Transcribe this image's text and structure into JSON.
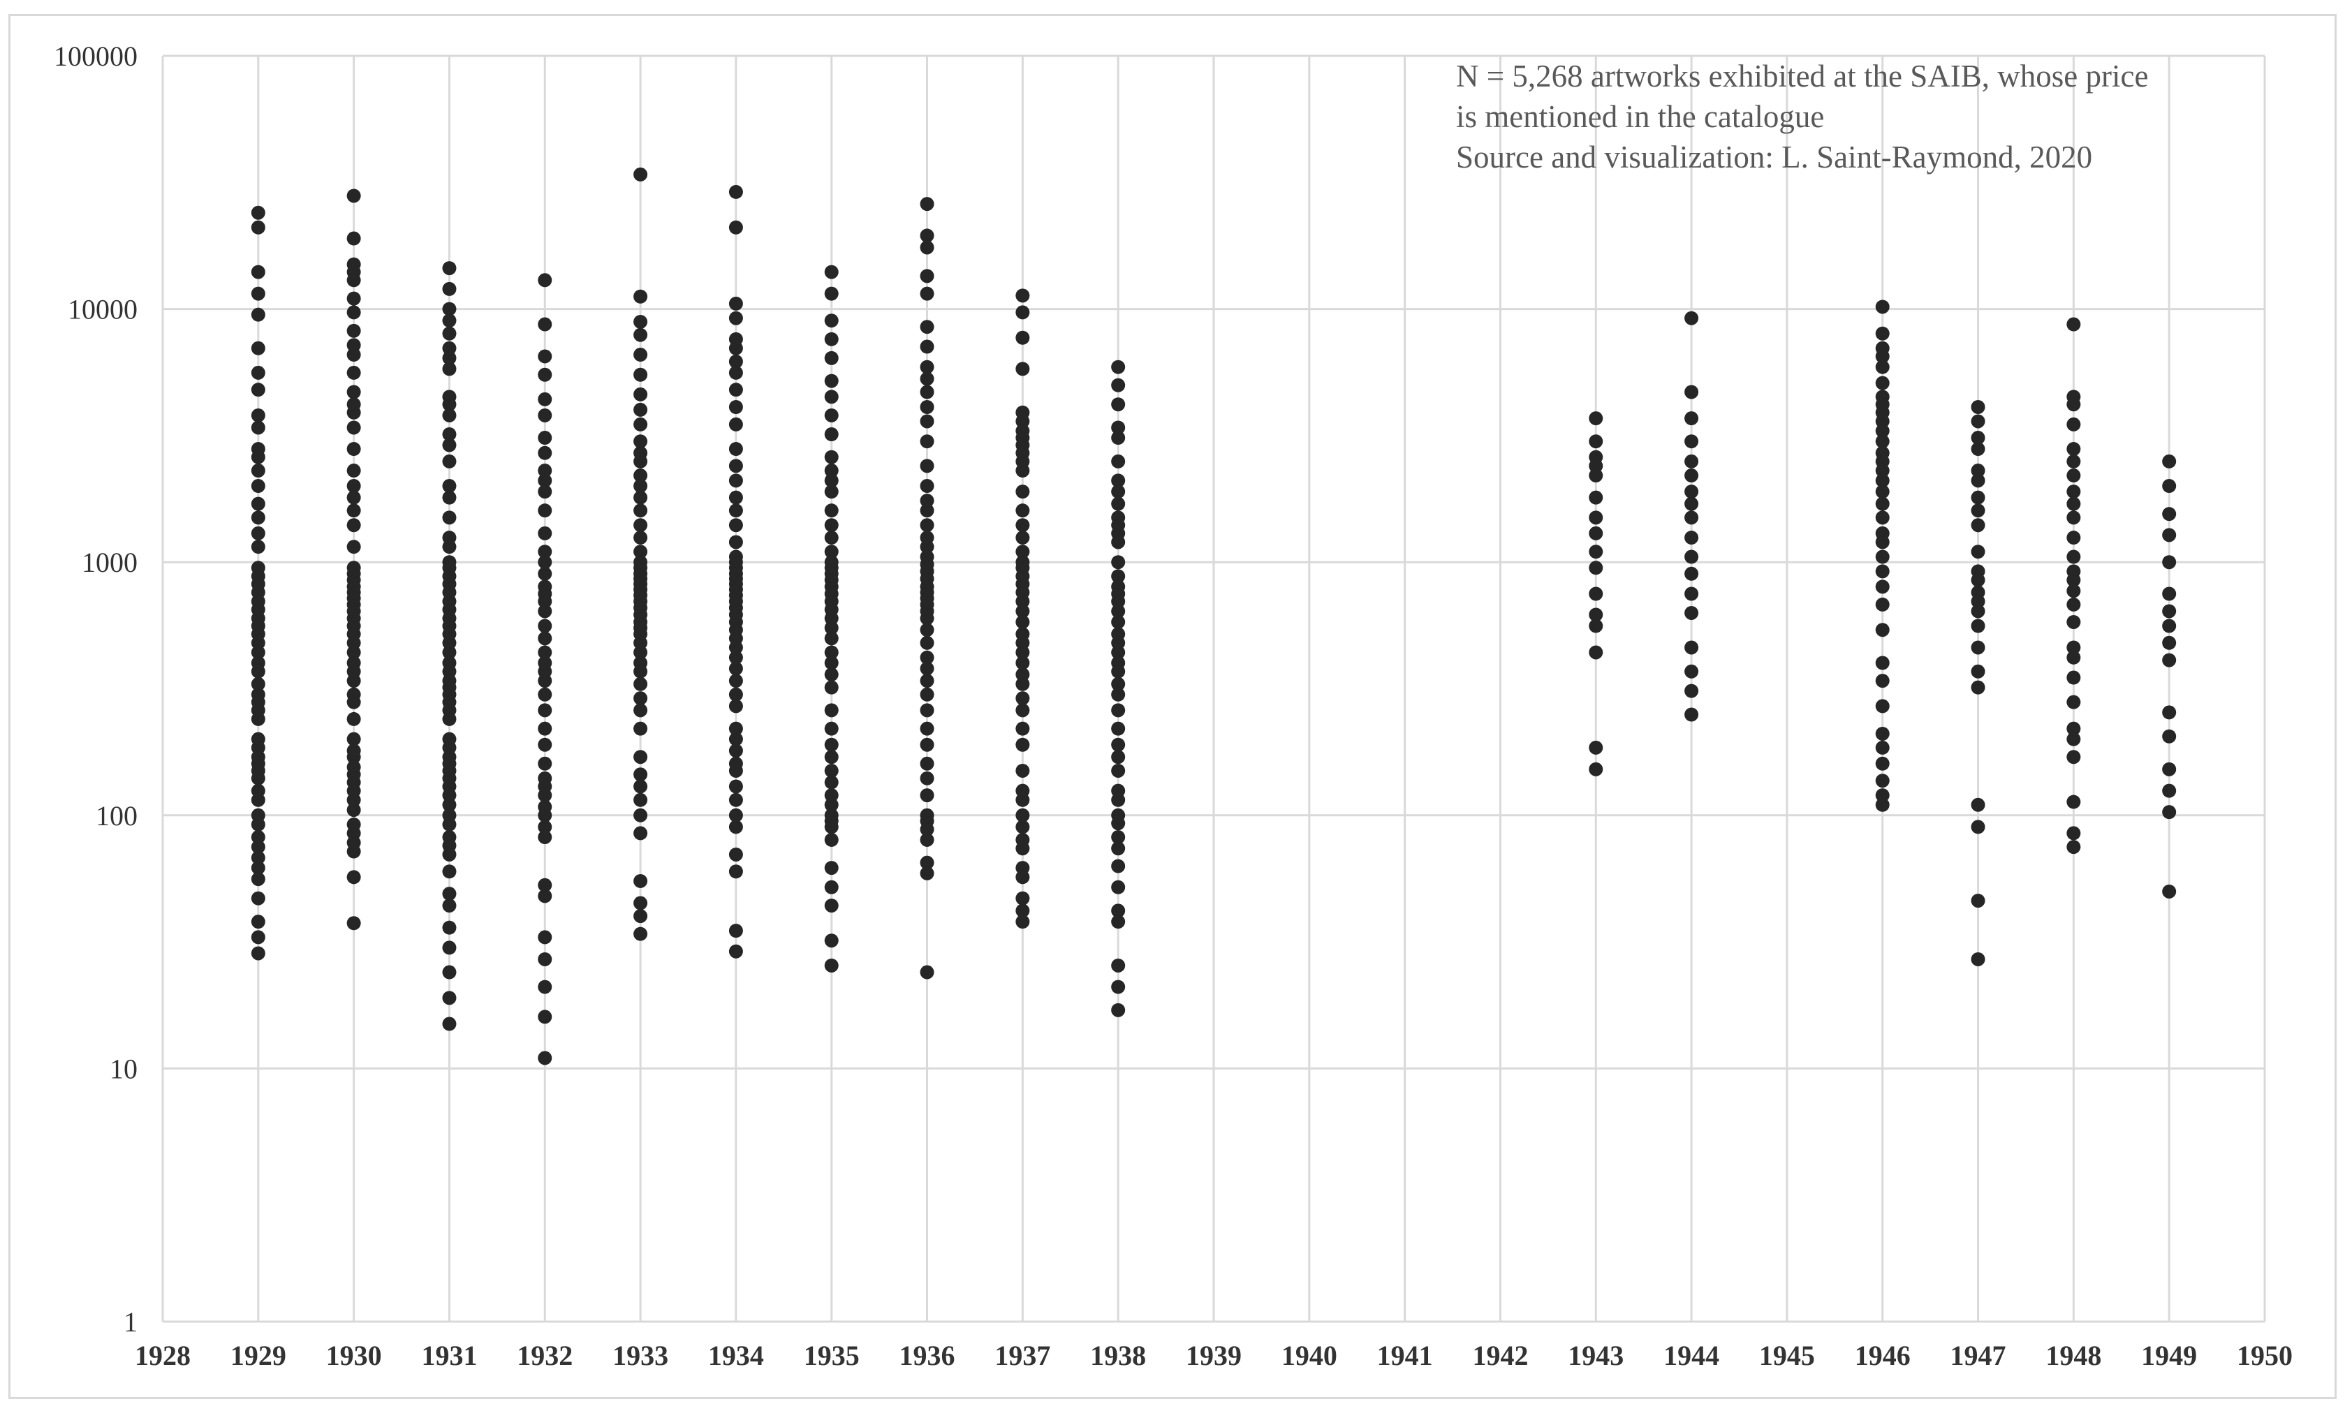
{
  "chart_data": {
    "type": "scatter",
    "title": "",
    "xlabel": "",
    "ylabel": "",
    "xlim": [
      1928,
      1950
    ],
    "ylim": [
      1,
      100000
    ],
    "y_scale": "log",
    "x_ticks": [
      "1928",
      "1929",
      "1930",
      "1931",
      "1932",
      "1933",
      "1934",
      "1935",
      "1936",
      "1937",
      "1938",
      "1939",
      "1940",
      "1941",
      "1942",
      "1943",
      "1944",
      "1945",
      "1946",
      "1947",
      "1948",
      "1949",
      "1950"
    ],
    "y_ticks": [
      "1",
      "10",
      "100",
      "1000",
      "10000",
      "100000"
    ],
    "grid": true,
    "legend": "none",
    "marker_color": "#262626",
    "annotation": [
      "N = 5,268 artworks exhibited at the SAIB, whose price",
      "is mentioned in the catalogue",
      "Source and visualization: L. Saint-Raymond, 2020"
    ],
    "series": [
      {
        "points_by_year": [
          {
            "x": 1929,
            "y": [
              24000,
              21000,
              14000,
              11500,
              9500,
              7000,
              5600,
              4800,
              3800,
              3400,
              2800,
              2600,
              2300,
              2000,
              1700,
              1500,
              1300,
              1150,
              950,
              880,
              820,
              760,
              700,
              650,
              600,
              560,
              520,
              480,
              440,
              400,
              370,
              330,
              300,
              280,
              260,
              240,
              200,
              185,
              170,
              160,
              150,
              140,
              125,
              115,
              100,
              92,
              82,
              75,
              68,
              62,
              56,
              47,
              38,
              33,
              28.5
            ]
          },
          {
            "x": 1930,
            "y": [
              28000,
              19000,
              15000,
              14000,
              13000,
              11000,
              9700,
              8200,
              7200,
              6600,
              5600,
              4700,
              4200,
              3900,
              3400,
              2800,
              2300,
              2000,
              1800,
              1600,
              1400,
              1150,
              950,
              900,
              850,
              800,
              760,
              720,
              680,
              640,
              600,
              560,
              520,
              480,
              440,
              400,
              370,
              340,
              300,
              280,
              240,
              200,
              180,
              170,
              155,
              145,
              135,
              125,
              115,
              105,
              92,
              85,
              78,
              72,
              57,
              37.5
            ]
          },
          {
            "x": 1931,
            "y": [
              14500,
              12000,
              10000,
              9000,
              8000,
              7000,
              6400,
              5800,
              4500,
              4200,
              3800,
              3200,
              2900,
              2500,
              2000,
              1800,
              1500,
              1250,
              1150,
              1000,
              950,
              880,
              820,
              760,
              700,
              650,
              600,
              560,
              520,
              480,
              440,
              400,
              370,
              340,
              320,
              300,
              280,
              260,
              240,
              200,
              185,
              170,
              160,
              150,
              140,
              130,
              120,
              110,
              100,
              92,
              82,
              76,
              70,
              60,
              49,
              44,
              36,
              30,
              24,
              19,
              15
            ]
          },
          {
            "x": 1932,
            "y": [
              13000,
              8700,
              6500,
              5500,
              4400,
              3800,
              3100,
              2700,
              2300,
              2100,
              1900,
              1600,
              1300,
              1100,
              1000,
              900,
              800,
              750,
              700,
              640,
              560,
              500,
              440,
              400,
              370,
              340,
              300,
              260,
              220,
              190,
              160,
              140,
              130,
              120,
              108,
              100,
              90,
              82,
              53,
              48,
              33,
              27,
              21,
              16,
              11
            ]
          },
          {
            "x": 1933,
            "y": [
              34000,
              11200,
              8900,
              7900,
              6600,
              5500,
              4600,
              4000,
              3500,
              3000,
              2700,
              2500,
              2200,
              2000,
              1800,
              1600,
              1400,
              1250,
              1100,
              1000,
              950,
              900,
              860,
              820,
              780,
              740,
              700,
              660,
              620,
              580,
              550,
              520,
              480,
              440,
              400,
              370,
              330,
              290,
              260,
              220,
              170,
              145,
              130,
              115,
              100,
              85,
              55,
              45,
              40,
              34
            ]
          },
          {
            "x": 1934,
            "y": [
              29000,
              21000,
              10500,
              9200,
              7600,
              7000,
              6200,
              5600,
              4800,
              4100,
              3500,
              2800,
              2400,
              2100,
              1800,
              1600,
              1400,
              1200,
              1050,
              1000,
              950,
              900,
              860,
              820,
              780,
              740,
              700,
              660,
              620,
              580,
              540,
              500,
              460,
              420,
              380,
              340,
              300,
              270,
              220,
              200,
              180,
              160,
              150,
              130,
              115,
              100,
              90,
              70,
              60,
              35,
              29
            ]
          },
          {
            "x": 1935,
            "y": [
              14000,
              11500,
              9000,
              7600,
              6400,
              5200,
              4500,
              3800,
              3200,
              2600,
              2300,
              2100,
              1900,
              1600,
              1400,
              1250,
              1100,
              1000,
              950,
              900,
              850,
              800,
              750,
              700,
              650,
              600,
              550,
              500,
              440,
              400,
              360,
              320,
              260,
              220,
              190,
              170,
              150,
              135,
              120,
              110,
              100,
              95,
              90,
              80,
              62,
              52,
              44,
              32,
              25.5
            ]
          },
          {
            "x": 1936,
            "y": [
              26000,
              19500,
              17500,
              13500,
              11500,
              8500,
              7100,
              5900,
              5300,
              4700,
              4100,
              3600,
              3000,
              2400,
              2000,
              1750,
              1600,
              1400,
              1250,
              1150,
              1050,
              980,
              920,
              860,
              800,
              760,
              720,
              680,
              640,
              600,
              540,
              480,
              420,
              380,
              340,
              300,
              260,
              220,
              190,
              160,
              140,
              120,
              100,
              95,
              88,
              80,
              65,
              59,
              24
            ]
          },
          {
            "x": 1937,
            "y": [
              11300,
              9700,
              7700,
              5800,
              3900,
              3600,
              3300,
              3100,
              2900,
              2700,
              2500,
              2300,
              1900,
              1600,
              1400,
              1250,
              1100,
              1000,
              950,
              880,
              820,
              760,
              700,
              640,
              580,
              520,
              480,
              440,
              400,
              360,
              330,
              290,
              260,
              220,
              190,
              150,
              125,
              115,
              100,
              90,
              80,
              74,
              62,
              57,
              47,
              42,
              38
            ]
          },
          {
            "x": 1938,
            "y": [
              5900,
              5000,
              4200,
              3400,
              3100,
              2500,
              2100,
              1900,
              1700,
              1500,
              1400,
              1300,
              1200,
              1000,
              880,
              800,
              750,
              700,
              640,
              580,
              520,
              480,
              440,
              400,
              370,
              330,
              300,
              260,
              220,
              190,
              170,
              150,
              125,
              115,
              100,
              93,
              82,
              74,
              63,
              52,
              42,
              38,
              25.5,
              21,
              17
            ]
          },
          {
            "x": 1943,
            "y": [
              3700,
              3000,
              2600,
              2400,
              2200,
              1800,
              1500,
              1300,
              1100,
              950,
              750,
              620,
              560,
              440,
              185,
              152
            ]
          },
          {
            "x": 1944,
            "y": [
              9200,
              4700,
              3700,
              3000,
              2500,
              2200,
              1900,
              1700,
              1500,
              1250,
              1050,
              900,
              750,
              630,
              460,
              370,
              310,
              250
            ]
          },
          {
            "x": 1946,
            "y": [
              10200,
              8000,
              7000,
              6500,
              5900,
              5100,
              4500,
              4200,
              3900,
              3600,
              3300,
              3000,
              2700,
              2500,
              2300,
              2100,
              1900,
              1700,
              1500,
              1300,
              1200,
              1050,
              920,
              800,
              680,
              540,
              400,
              340,
              270,
              210,
              185,
              160,
              137,
              120,
              110
            ]
          },
          {
            "x": 1947,
            "y": [
              4100,
              3600,
              3100,
              2800,
              2300,
              2100,
              1800,
              1600,
              1400,
              1100,
              920,
              850,
              760,
              700,
              640,
              560,
              460,
              370,
              320,
              110,
              90,
              46,
              27
            ]
          },
          {
            "x": 1948,
            "y": [
              8700,
              4500,
              4200,
              3500,
              2800,
              2500,
              2200,
              1900,
              1700,
              1500,
              1250,
              1050,
              920,
              850,
              770,
              680,
              580,
              460,
              420,
              350,
              280,
              220,
              200,
              170,
              113,
              85,
              75
            ]
          },
          {
            "x": 1949,
            "y": [
              2500,
              2000,
              1550,
              1280,
              1000,
              750,
              640,
              560,
              480,
              410,
              255,
              205,
              152,
              125,
              103,
              50
            ]
          }
        ]
      }
    ]
  }
}
